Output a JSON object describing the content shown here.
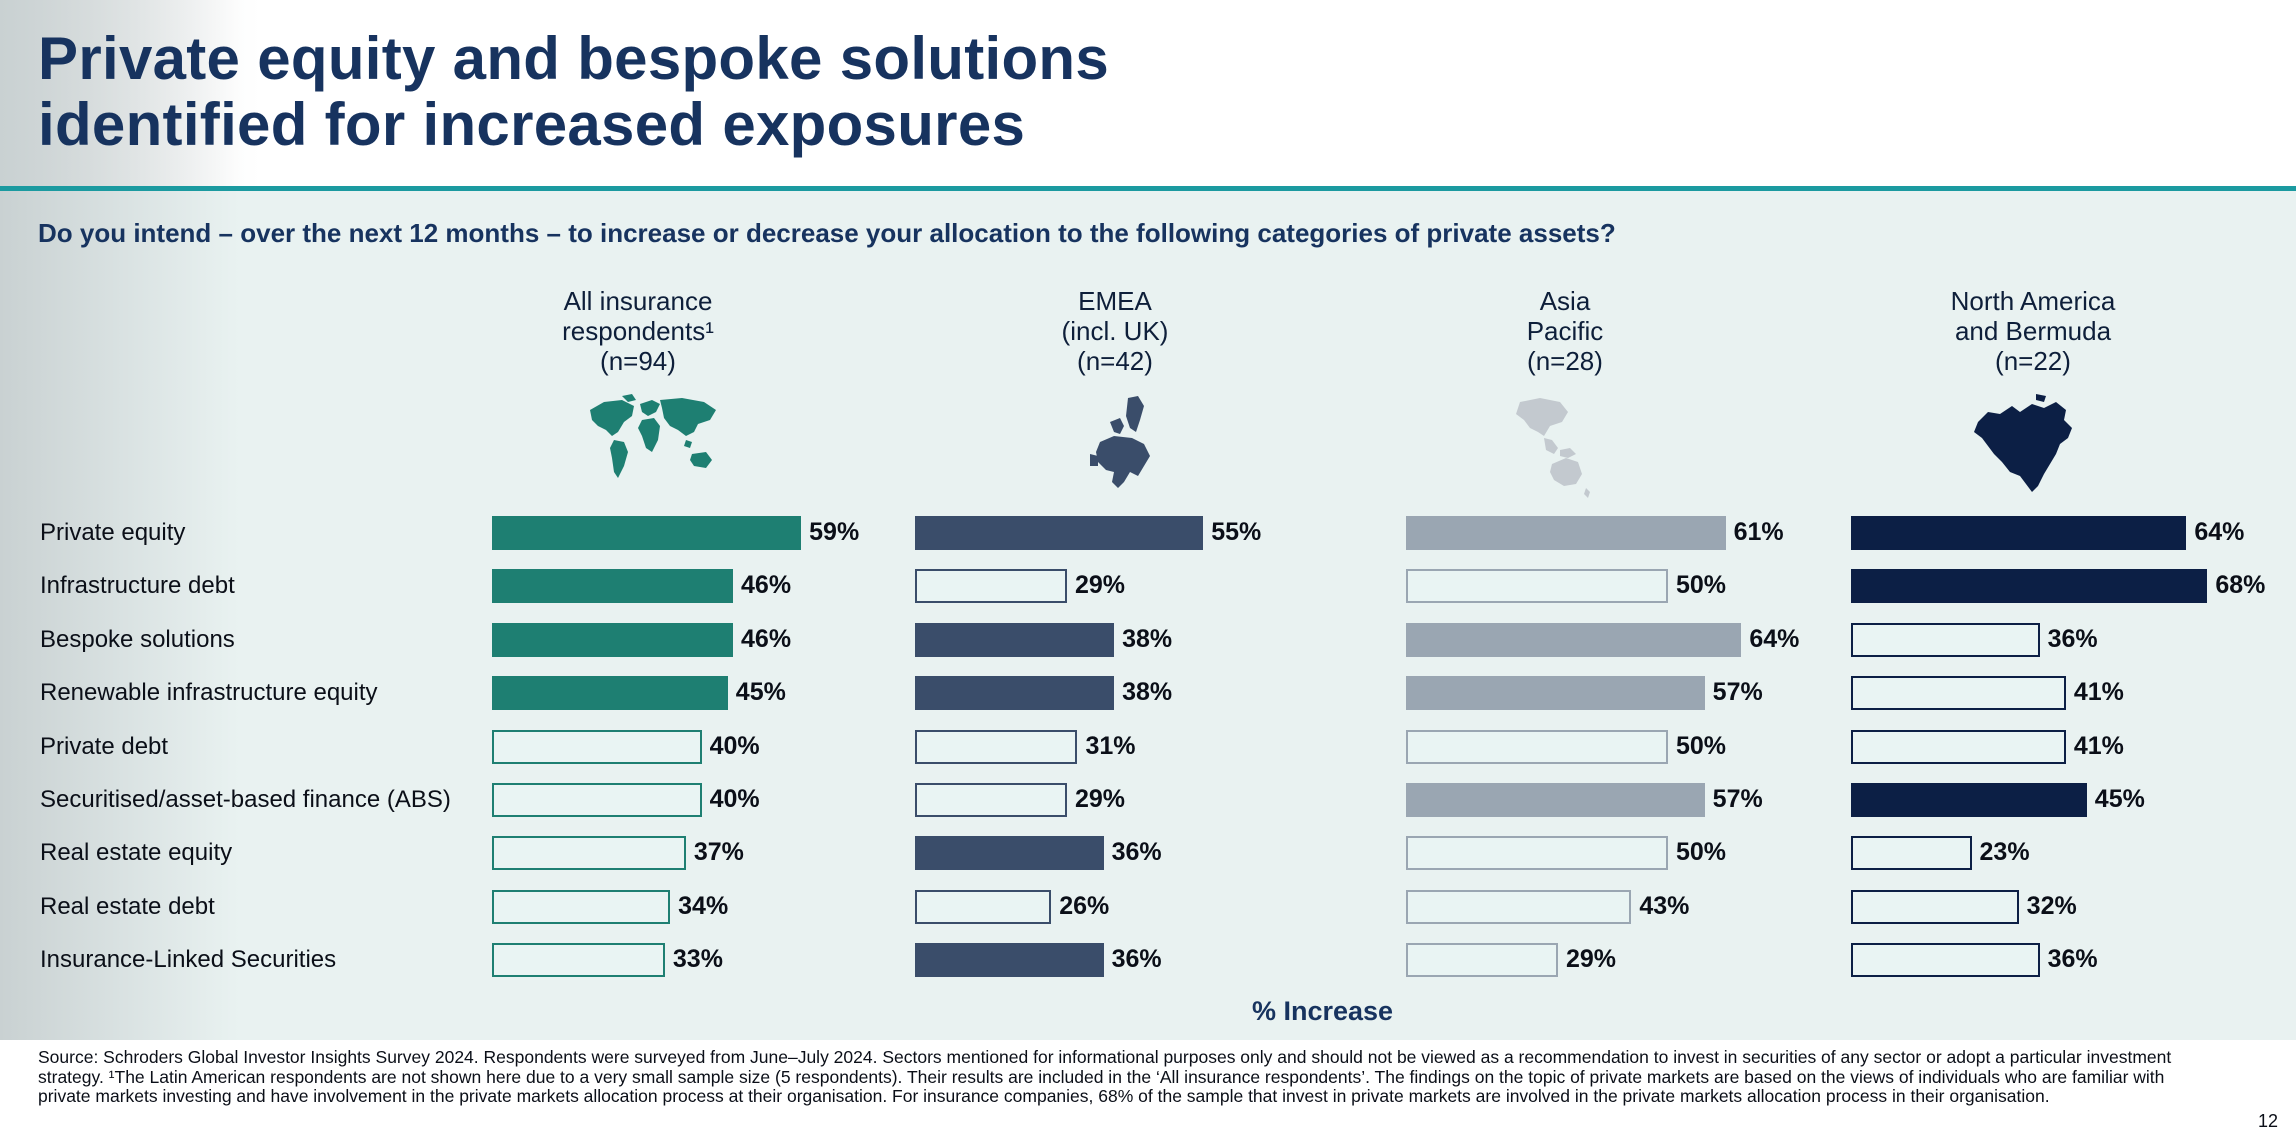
{
  "title_line1": "Private equity and bespoke solutions",
  "title_line2": "identified for increased exposures",
  "question": "Do you intend – over the next 12 months – to increase or decrease your allocation to the following categories of private assets?",
  "axis_caption": "% Increase",
  "footnote": "Source: Schroders Global Investor Insights Survey 2024. Respondents were surveyed from June–July 2024. Sectors mentioned for informational purposes only and should not be viewed as a recommendation to invest in securities of any sector or adopt a particular investment strategy. ¹The Latin American respondents are not shown here due to a very small sample size (5 respondents). Their results are included in the ‘All insurance respondents’. The findings on the topic of private markets are based on the views of individuals who are familiar with private markets investing and have involvement in the private markets allocation process at their organisation. For insurance companies, 68% of the sample that invest in private markets are involved in the private markets allocation process in their organisation.",
  "page_number": "12",
  "colors": {
    "title": "#17335f",
    "rule": "#1b9aa0",
    "background": "#e9f2f1",
    "all": "#1e7f72",
    "emea": "#3a4d6a",
    "apac": "#9aa6b2",
    "na": "#0c1f45"
  },
  "chart_data": {
    "type": "bar",
    "orientation": "horizontal",
    "unit": "%",
    "categories": [
      "Private equity",
      "Infrastructure debt",
      "Bespoke solutions",
      "Renewable infrastructure equity",
      "Private debt",
      "Securitised/asset-based finance (ABS)",
      "Real estate equity",
      "Real estate debt",
      "Insurance-Linked Securities"
    ],
    "series": [
      {
        "header": [
          "All insurance",
          "respondents¹",
          "(n=94)"
        ],
        "icon": "world-map-icon",
        "color": "#1e7f72",
        "values": [
          59,
          46,
          46,
          45,
          40,
          40,
          37,
          34,
          33
        ],
        "highlighted": [
          true,
          true,
          true,
          true,
          false,
          false,
          false,
          false,
          false
        ],
        "labels": [
          "59%",
          "46%",
          "46%",
          "45%",
          "40%",
          "40%",
          "37%",
          "34%",
          "33%"
        ]
      },
      {
        "header": [
          "EMEA",
          "(incl. UK)",
          "(n=42)"
        ],
        "icon": "europe-map-icon",
        "color": "#3a4d6a",
        "values": [
          55,
          29,
          38,
          38,
          31,
          29,
          36,
          26,
          36
        ],
        "highlighted": [
          true,
          false,
          true,
          true,
          false,
          false,
          true,
          false,
          true
        ],
        "labels": [
          "55%",
          "29%",
          "38%",
          "38%",
          "31%",
          "29%",
          "36%",
          "26%",
          "36%"
        ]
      },
      {
        "header": [
          "Asia",
          "Pacific",
          "(n=28)"
        ],
        "icon": "asia-pacific-map-icon",
        "color": "#9aa6b2",
        "values": [
          61,
          50,
          64,
          57,
          50,
          57,
          50,
          43,
          29
        ],
        "highlighted": [
          true,
          false,
          true,
          true,
          false,
          true,
          false,
          false,
          false
        ],
        "labels": [
          "61%",
          "50%",
          "64%",
          "57%",
          "50%",
          "57%",
          "50%",
          "43%",
          "29%"
        ]
      },
      {
        "header": [
          "North America",
          "and Bermuda",
          "(n=22)"
        ],
        "icon": "north-america-map-icon",
        "color": "#0c1f45",
        "values": [
          64,
          68,
          36,
          41,
          41,
          45,
          23,
          32,
          36
        ],
        "highlighted": [
          true,
          true,
          false,
          false,
          false,
          true,
          false,
          false,
          false
        ],
        "labels": [
          "64%",
          "68%",
          "36%",
          "41%",
          "41%",
          "45%",
          "23%",
          "32%",
          "36%"
        ]
      }
    ]
  }
}
